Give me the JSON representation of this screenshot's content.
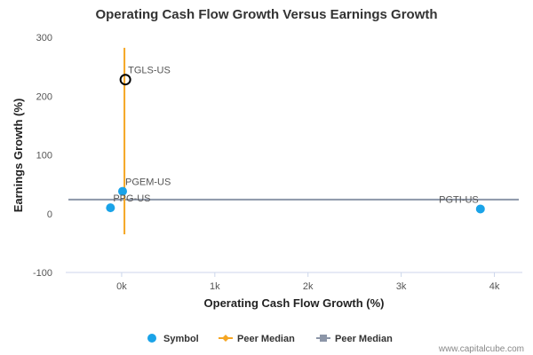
{
  "chart_data": {
    "type": "scatter",
    "title": "Operating Cash Flow Growth Versus Earnings Growth",
    "xlabel": "Operating Cash Flow Growth (%)",
    "ylabel": "Earnings Growth (%)",
    "xlim": [
      -600,
      4300
    ],
    "ylim": [
      -100,
      300
    ],
    "x_ticks": [
      {
        "value": 0,
        "label": "0k"
      },
      {
        "value": 1000,
        "label": "1k"
      },
      {
        "value": 2000,
        "label": "2k"
      },
      {
        "value": 3000,
        "label": "3k"
      },
      {
        "value": 4000,
        "label": "4k"
      }
    ],
    "y_ticks": [
      {
        "value": -100,
        "label": "-100"
      },
      {
        "value": 0,
        "label": "0"
      },
      {
        "value": 100,
        "label": "100"
      },
      {
        "value": 200,
        "label": "200"
      },
      {
        "value": 300,
        "label": "300"
      }
    ],
    "points": [
      {
        "label": "TGLS-US",
        "x": 40,
        "y": 228,
        "highlight": true
      },
      {
        "label": "PGEM-US",
        "x": 10,
        "y": 38,
        "highlight": false
      },
      {
        "label": "PPG-US",
        "x": -120,
        "y": 10,
        "highlight": false
      },
      {
        "label": "PGTI-US",
        "x": 3850,
        "y": 8,
        "highlight": false
      }
    ],
    "peer_median_x": {
      "value": 30,
      "y_range": [
        -35,
        282
      ]
    },
    "peer_median_y": {
      "value": 24
    },
    "legend": [
      {
        "label": "Symbol",
        "color": "#1aa3e8",
        "marker": "circle"
      },
      {
        "label": "Peer Median",
        "color": "#f5a623",
        "marker": "line-diamond"
      },
      {
        "label": "Peer Median",
        "color": "#8c96a8",
        "marker": "line-square"
      }
    ],
    "legend_position": "bottom-center",
    "grid": false,
    "colors": {
      "symbol": "#1aa3e8",
      "median_x": "#f5a623",
      "median_y": "#8c96a8"
    }
  },
  "credit": "www.capitalcube.com"
}
